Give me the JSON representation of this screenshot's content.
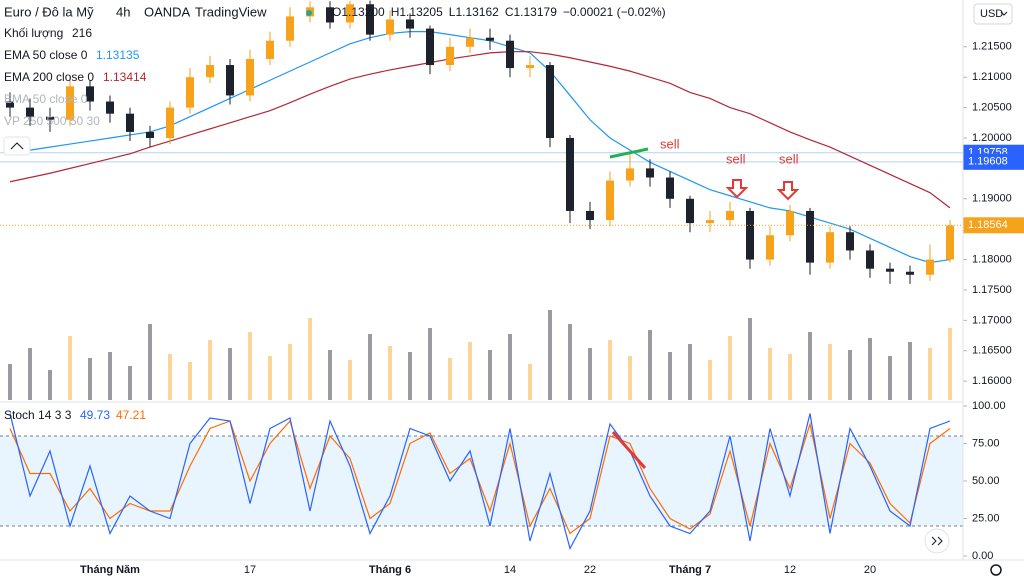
{
  "chart_data": {
    "type": "candlestick",
    "header": {
      "symbol": "Euro / Đô la Mỹ",
      "interval": "4h",
      "broker": "OANDA",
      "platform": "TradingView",
      "ohlc": [
        "O1.13200",
        "H1.13205",
        "L1.13162",
        "C1.13179",
        "−0.00021 (−0.02%)"
      ]
    },
    "legend": [
      {
        "label": "Khối lượng",
        "value": 216
      },
      {
        "label": "EMA 50 close 0",
        "value": 1.13135,
        "color": "#2196f3"
      },
      {
        "label": "EMA 200 close 0",
        "value": 1.13414,
        "color": "#b22833"
      },
      {
        "label": "EMA 50 close 0"
      },
      {
        "label": "VP 250 500 50 30"
      }
    ],
    "currency": "USD",
    "up_color": "#f7a21b",
    "down_color": "#1e222d",
    "categories": [
      null,
      null,
      null,
      null,
      null,
      "Tháng Năm",
      null,
      null,
      null,
      null,
      null,
      null,
      "17",
      null,
      null,
      null,
      null,
      null,
      null,
      "Tháng 6",
      null,
      null,
      null,
      null,
      null,
      "14",
      null,
      null,
      null,
      "22",
      null,
      null,
      null,
      null,
      "Tháng 7",
      null,
      null,
      null,
      null,
      "12",
      null,
      null,
      null,
      "20",
      null,
      null,
      null,
      null
    ],
    "ohlc": [
      [
        1.206,
        1.2075,
        1.2035,
        1.205
      ],
      [
        1.205,
        1.2065,
        1.202,
        1.2035
      ],
      [
        1.2035,
        1.205,
        1.201,
        1.203
      ],
      [
        1.203,
        1.21,
        1.202,
        1.2085
      ],
      [
        1.2085,
        1.2095,
        1.2045,
        1.206
      ],
      [
        1.206,
        1.207,
        1.2025,
        1.204
      ],
      [
        1.204,
        1.205,
        1.1995,
        1.201
      ],
      [
        1.201,
        1.202,
        1.1985,
        1.2
      ],
      [
        1.2,
        1.206,
        1.199,
        1.205
      ],
      [
        1.205,
        1.2115,
        1.204,
        1.21
      ],
      [
        1.21,
        1.2135,
        1.209,
        1.212
      ],
      [
        1.212,
        1.213,
        1.2055,
        1.207
      ],
      [
        1.207,
        1.2145,
        1.206,
        1.213
      ],
      [
        1.213,
        1.2175,
        1.212,
        1.216
      ],
      [
        1.216,
        1.2215,
        1.215,
        1.22
      ],
      [
        1.22,
        1.2225,
        1.219,
        1.2215
      ],
      [
        1.2215,
        1.2225,
        1.218,
        1.219
      ],
      [
        1.219,
        1.2226,
        1.218,
        1.222
      ],
      [
        1.222,
        1.2226,
        1.216,
        1.217
      ],
      [
        1.217,
        1.221,
        1.216,
        1.2195
      ],
      [
        1.2195,
        1.2205,
        1.2165,
        1.218
      ],
      [
        1.218,
        1.2185,
        1.2105,
        1.212
      ],
      [
        1.212,
        1.2165,
        1.211,
        1.215
      ],
      [
        1.215,
        1.218,
        1.214,
        1.2165
      ],
      [
        1.2165,
        1.218,
        1.2145,
        1.216
      ],
      [
        1.216,
        1.217,
        1.21,
        1.2115
      ],
      [
        1.2115,
        1.2135,
        1.21,
        1.212
      ],
      [
        1.212,
        1.2125,
        1.1985,
        1.2
      ],
      [
        1.2,
        1.2005,
        1.186,
        1.188
      ],
      [
        1.188,
        1.1895,
        1.185,
        1.1865
      ],
      [
        1.1865,
        1.1945,
        1.1855,
        1.193
      ],
      [
        1.193,
        1.1975,
        1.192,
        1.195
      ],
      [
        1.195,
        1.1965,
        1.192,
        1.1935
      ],
      [
        1.1935,
        1.1945,
        1.1885,
        1.19
      ],
      [
        1.19,
        1.1905,
        1.1845,
        1.186
      ],
      [
        1.186,
        1.188,
        1.1845,
        1.1865
      ],
      [
        1.1865,
        1.1895,
        1.1855,
        1.188
      ],
      [
        1.188,
        1.1885,
        1.1785,
        1.18
      ],
      [
        1.18,
        1.1855,
        1.179,
        1.184
      ],
      [
        1.184,
        1.189,
        1.183,
        1.188
      ],
      [
        1.188,
        1.1885,
        1.1775,
        1.1795
      ],
      [
        1.1795,
        1.1855,
        1.1785,
        1.1845
      ],
      [
        1.1845,
        1.1855,
        1.18,
        1.1815
      ],
      [
        1.1815,
        1.1825,
        1.177,
        1.1785
      ],
      [
        1.1785,
        1.1795,
        1.176,
        1.178
      ],
      [
        1.178,
        1.179,
        1.176,
        1.1775
      ],
      [
        1.1775,
        1.1825,
        1.1765,
        1.18
      ],
      [
        1.18,
        1.1865,
        1.1795,
        1.1856
      ]
    ],
    "ema": [
      {
        "color": "#2196f3",
        "values": [
          1.1975,
          1.198,
          1.1985,
          1.199,
          1.1995,
          1.2,
          1.2005,
          1.201,
          1.202,
          1.2035,
          1.205,
          1.2065,
          1.208,
          1.2095,
          1.211,
          1.2125,
          1.214,
          1.2155,
          1.2165,
          1.2172,
          1.2175,
          1.2175,
          1.217,
          1.2165,
          1.216,
          1.215,
          1.214,
          1.211,
          1.207,
          1.203,
          1.2,
          1.198,
          1.196,
          1.1945,
          1.193,
          1.1915,
          1.1905,
          1.1895,
          1.1885,
          1.188,
          1.187,
          1.186,
          1.185,
          1.1835,
          1.182,
          1.1805,
          1.1795,
          1.18
        ]
      },
      {
        "color": "#b22833",
        "values": [
          1.1928,
          1.1935,
          1.1942,
          1.195,
          1.1958,
          1.1966,
          1.1974,
          1.1985,
          1.1995,
          1.2005,
          1.2015,
          1.2025,
          1.2035,
          1.2045,
          1.2058,
          1.2072,
          1.2085,
          1.2097,
          1.2105,
          1.2112,
          1.2118,
          1.2124,
          1.213,
          1.2135,
          1.214,
          1.2142,
          1.2142,
          1.2138,
          1.2132,
          1.2125,
          1.2118,
          1.211,
          1.21,
          1.209,
          1.2075,
          1.2065,
          1.205,
          1.204,
          1.2025,
          1.201,
          1.1997,
          1.1985,
          1.197,
          1.1955,
          1.194,
          1.1925,
          1.191,
          1.1885
        ]
      }
    ],
    "volume": [
      180,
      260,
      150,
      320,
      210,
      240,
      170,
      380,
      230,
      190,
      300,
      260,
      340,
      220,
      280,
      410,
      250,
      200,
      330,
      270,
      240,
      360,
      210,
      290,
      250,
      330,
      180,
      450,
      380,
      260,
      300,
      220,
      350,
      240,
      280,
      200,
      320,
      410,
      260,
      230,
      340,
      280,
      250,
      310,
      220,
      290,
      260,
      360
    ],
    "volume_lim": [
      0,
      500
    ],
    "ylim": [
      1.1569,
      1.2227
    ],
    "yticks": [
      {
        "value": 1.215,
        "label": "1.21500"
      },
      {
        "value": 1.21,
        "label": "1.21000"
      },
      {
        "value": 1.205,
        "label": "1.20500"
      },
      {
        "value": 1.2,
        "label": "1.20000"
      },
      {
        "value": 1.19,
        "label": "1.19000"
      },
      {
        "value": 1.18,
        "label": "1.18000"
      },
      {
        "value": 1.175,
        "label": "1.17500"
      },
      {
        "value": 1.17,
        "label": "1.17000"
      },
      {
        "value": 1.165,
        "label": "1.16500"
      },
      {
        "value": 1.16,
        "label": "1.16000"
      }
    ],
    "levels": [
      {
        "value": 1.19758,
        "color": "#2962ff"
      },
      {
        "value": 1.19608,
        "color": "#2962ff"
      }
    ],
    "last_price": {
      "value": 1.18564,
      "color": "#f7a21b"
    },
    "annotations": [
      "sell",
      "sell",
      "sell"
    ],
    "stoch": {
      "title": "Stoch 14 3 3",
      "k_value": 49.73,
      "d_value": 47.21,
      "k_color": "#2962ff",
      "d_color": "#ff6d00",
      "k": [
        95,
        40,
        70,
        20,
        60,
        15,
        40,
        30,
        25,
        75,
        92,
        90,
        35,
        85,
        92,
        30,
        90,
        60,
        15,
        40,
        85,
        80,
        50,
        70,
        20,
        85,
        10,
        55,
        5,
        30,
        88,
        70,
        40,
        20,
        15,
        30,
        80,
        10,
        85,
        40,
        95,
        15,
        85,
        60,
        30,
        20,
        85,
        90
      ],
      "d": [
        85,
        55,
        55,
        30,
        45,
        25,
        35,
        30,
        30,
        60,
        85,
        90,
        50,
        75,
        90,
        45,
        80,
        65,
        25,
        35,
        75,
        82,
        55,
        65,
        30,
        75,
        20,
        45,
        15,
        25,
        80,
        75,
        45,
        25,
        18,
        28,
        70,
        20,
        75,
        45,
        88,
        25,
        75,
        62,
        35,
        22,
        75,
        85
      ],
      "band": [
        20,
        80
      ],
      "ylim": [
        0,
        100
      ],
      "yticks": [
        {
          "value": 100,
          "label": "100.00"
        },
        {
          "value": 75,
          "label": "75.00"
        },
        {
          "value": 50,
          "label": "50.00"
        },
        {
          "value": 25,
          "label": "25.00"
        },
        {
          "value": 0,
          "label": "0.00"
        }
      ]
    }
  }
}
